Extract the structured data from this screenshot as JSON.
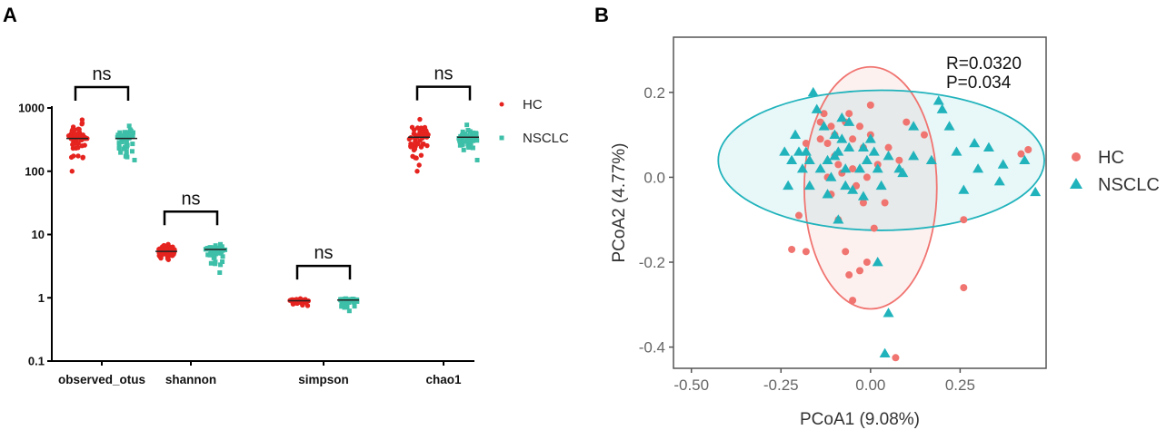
{
  "panels": {
    "a_label": "A",
    "b_label": "B"
  },
  "colors": {
    "hc": "#e5231f",
    "nsclc": "#3dbfa8",
    "hc_b": "#f07470",
    "nsclc_b": "#21b3bc"
  },
  "chart_data": [
    {
      "type": "scatter",
      "subtype": "dot-strip",
      "panel": "A",
      "yscale": "log",
      "ylim": [
        0.1,
        1000
      ],
      "yticks": [
        0.1,
        1,
        10,
        100,
        1000
      ],
      "ytick_labels": [
        "0.1",
        "1",
        "10",
        "100",
        "1000"
      ],
      "categories": [
        "observed_otus",
        "shannon",
        "simpson",
        "chao1"
      ],
      "series": [
        {
          "name": "HC",
          "marker": "circle",
          "median": [
            330,
            5.4,
            0.9,
            345
          ],
          "min": [
            100,
            4.0,
            0.75,
            100
          ],
          "max": [
            650,
            7.0,
            0.97,
            660
          ]
        },
        {
          "name": "NSCLC",
          "marker": "square",
          "median": [
            330,
            5.8,
            0.92,
            345
          ],
          "min": [
            150,
            2.5,
            0.62,
            150
          ],
          "max": [
            520,
            7.0,
            0.97,
            540
          ]
        }
      ],
      "significance": [
        "ns",
        "ns",
        "ns",
        "ns"
      ],
      "legend": [
        "HC",
        "NSCLC"
      ]
    },
    {
      "type": "scatter",
      "panel": "B",
      "xlabel": "PCoA1 (9.08%)",
      "ylabel": "PCoA2 (4.77%)",
      "xlim": [
        -0.55,
        0.49
      ],
      "ylim": [
        -0.45,
        0.33
      ],
      "xticks": [
        -0.5,
        -0.25,
        0.0,
        0.25
      ],
      "xtick_labels": [
        "-0.50",
        "-0.25",
        "0.00",
        "0.25"
      ],
      "yticks": [
        -0.4,
        -0.2,
        0.0,
        0.2
      ],
      "ytick_labels": [
        "-0.4",
        "-0.2",
        "0.0",
        "0.2"
      ],
      "annotation": [
        "R=0.0320",
        "P=0.034"
      ],
      "legend": [
        "HC",
        "NSCLC"
      ],
      "ellipses": [
        {
          "name": "HC",
          "cx": 0.0,
          "cy": -0.025,
          "rx": 0.185,
          "ry": 0.285
        },
        {
          "name": "NSCLC",
          "cx": 0.03,
          "cy": 0.04,
          "rx": 0.455,
          "ry": 0.165
        }
      ],
      "series": [
        {
          "name": "HC",
          "marker": "circle",
          "points": [
            [
              -0.22,
              -0.17
            ],
            [
              -0.2,
              -0.09
            ],
            [
              -0.18,
              -0.175
            ],
            [
              -0.14,
              0.09
            ],
            [
              -0.13,
              0.15
            ],
            [
              -0.12,
              0.08
            ],
            [
              -0.12,
              0.0
            ],
            [
              -0.11,
              0.12
            ],
            [
              -0.11,
              -0.04
            ],
            [
              -0.1,
              0.1
            ],
            [
              -0.1,
              0.05
            ],
            [
              -0.09,
              0.03
            ],
            [
              -0.09,
              -0.1
            ],
            [
              -0.08,
              0.01
            ],
            [
              -0.07,
              0.13
            ],
            [
              -0.06,
              0.15
            ],
            [
              -0.05,
              0.09
            ],
            [
              -0.05,
              0.02
            ],
            [
              -0.04,
              -0.02
            ],
            [
              -0.03,
              0.12
            ],
            [
              -0.02,
              0.07
            ],
            [
              -0.02,
              -0.06
            ],
            [
              -0.01,
              0.0
            ],
            [
              0.0,
              0.1
            ],
            [
              0.01,
              -0.12
            ],
            [
              0.02,
              0.03
            ],
            [
              0.04,
              -0.06
            ],
            [
              0.05,
              0.07
            ],
            [
              0.08,
              0.04
            ],
            [
              -0.06,
              -0.23
            ],
            [
              -0.05,
              -0.29
            ],
            [
              -0.03,
              -0.22
            ],
            [
              -0.01,
              -0.2
            ],
            [
              0.07,
              -0.425
            ],
            [
              0.1,
              0.13
            ],
            [
              -0.14,
              0.13
            ],
            [
              0.26,
              -0.1
            ],
            [
              0.26,
              -0.26
            ],
            [
              0.42,
              0.055
            ],
            [
              0.44,
              0.065
            ],
            [
              0.15,
              0.1
            ],
            [
              -0.07,
              -0.175
            ],
            [
              -0.18,
              0.08
            ],
            [
              0.0,
              0.17
            ]
          ]
        },
        {
          "name": "NSCLC",
          "marker": "triangle",
          "points": [
            [
              -0.24,
              0.06
            ],
            [
              -0.23,
              -0.02
            ],
            [
              -0.22,
              0.04
            ],
            [
              -0.21,
              0.1
            ],
            [
              -0.2,
              0.06
            ],
            [
              -0.19,
              0.02
            ],
            [
              -0.18,
              0.06
            ],
            [
              -0.17,
              -0.02
            ],
            [
              -0.17,
              0.04
            ],
            [
              -0.16,
              0.2
            ],
            [
              -0.15,
              0.16
            ],
            [
              -0.14,
              0.02
            ],
            [
              -0.13,
              0.12
            ],
            [
              -0.12,
              0.04
            ],
            [
              -0.12,
              -0.04
            ],
            [
              -0.11,
              0.0
            ],
            [
              -0.1,
              0.05
            ],
            [
              -0.1,
              0.1
            ],
            [
              -0.09,
              0.06
            ],
            [
              -0.08,
              0.09
            ],
            [
              -0.07,
              0.02
            ],
            [
              -0.07,
              -0.02
            ],
            [
              -0.06,
              0.07
            ],
            [
              -0.05,
              -0.03
            ],
            [
              -0.03,
              0.02
            ],
            [
              -0.02,
              0.07
            ],
            [
              -0.01,
              0.04
            ],
            [
              0.0,
              0.09
            ],
            [
              0.01,
              0.06
            ],
            [
              0.02,
              0.02
            ],
            [
              0.03,
              -0.02
            ],
            [
              0.05,
              0.05
            ],
            [
              0.08,
              0.02
            ],
            [
              0.12,
              0.12
            ],
            [
              0.17,
              0.04
            ],
            [
              0.19,
              0.18
            ],
            [
              0.2,
              0.16
            ],
            [
              0.22,
              0.12
            ],
            [
              0.24,
              0.06
            ],
            [
              0.26,
              -0.03
            ],
            [
              0.29,
              0.08
            ],
            [
              0.3,
              0.02
            ],
            [
              0.33,
              0.07
            ],
            [
              0.36,
              -0.01
            ],
            [
              0.37,
              0.03
            ],
            [
              0.43,
              0.04
            ],
            [
              0.46,
              -0.035
            ],
            [
              -0.09,
              -0.1
            ],
            [
              0.02,
              -0.2
            ],
            [
              0.05,
              -0.32
            ],
            [
              0.04,
              -0.415
            ],
            [
              -0.06,
              0.13
            ],
            [
              0.12,
              0.05
            ],
            [
              -0.02,
              -0.045
            ],
            [
              0.09,
              0.01
            ],
            [
              -0.08,
              0.14
            ]
          ]
        }
      ]
    }
  ]
}
